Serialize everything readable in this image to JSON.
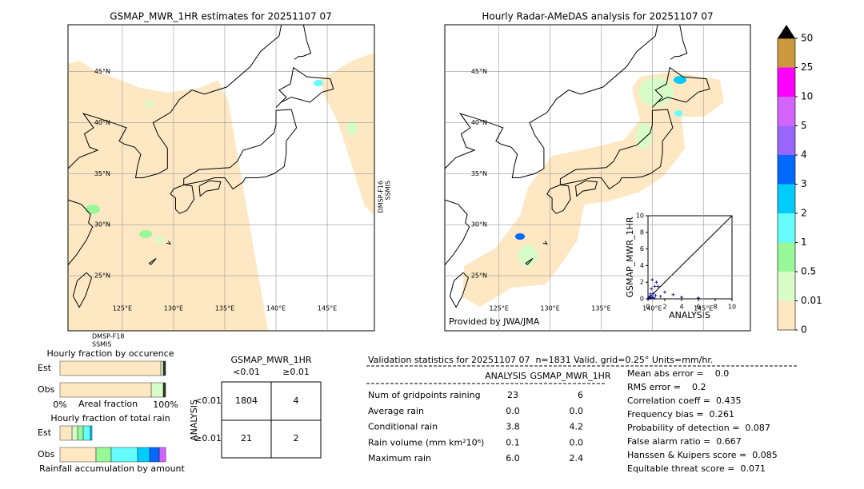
{
  "chart_data": [
    {
      "type": "map",
      "title": "GSMAP_MWR_1HR estimates for 20251107 07",
      "xlim": [
        119.7,
        149.6
      ],
      "ylim": [
        19.6,
        49.6
      ],
      "xticks": [
        {
          "value": 125,
          "label": "125°E"
        },
        {
          "value": 130,
          "label": "130°E"
        },
        {
          "value": 135,
          "label": "135°E"
        },
        {
          "value": 140,
          "label": "140°E"
        },
        {
          "value": 145,
          "label": "145°E"
        }
      ],
      "yticks": [
        {
          "value": 25,
          "label": "25°N"
        },
        {
          "value": 30,
          "label": "30°N"
        },
        {
          "value": 35,
          "label": "35°N"
        },
        {
          "value": 40,
          "label": "40°N"
        },
        {
          "value": 45,
          "label": "45°N"
        }
      ],
      "swath_labels": [
        [
          "DMSP-F16",
          "SSMIS"
        ],
        [
          "DMSP-F18",
          "SSMIS"
        ]
      ]
    },
    {
      "type": "map",
      "title": "Hourly Radar-AMeDAS analysis for 20251107 07",
      "xlim": [
        119.7,
        149.6
      ],
      "ylim": [
        19.6,
        49.6
      ],
      "xticks": [
        {
          "value": 125,
          "label": "125°E"
        },
        {
          "value": 130,
          "label": "130°E"
        },
        {
          "value": 135,
          "label": "135°E"
        },
        {
          "value": 140,
          "label": "140°E"
        },
        {
          "value": 145,
          "label": "145°E"
        }
      ],
      "yticks": [
        {
          "value": 25,
          "label": "25°N"
        },
        {
          "value": 30,
          "label": "30°N"
        },
        {
          "value": 35,
          "label": "35°N"
        },
        {
          "value": 40,
          "label": "40°N"
        },
        {
          "value": 45,
          "label": "45°N"
        }
      ],
      "credit": "Provided by JWA/JMA"
    },
    {
      "type": "scatter",
      "xlabel": "ANALYSIS",
      "ylabel": "GSMAP_MWR_1HR",
      "xlim": [
        0,
        10
      ],
      "ylim": [
        0,
        10
      ],
      "xticks": [
        0,
        2,
        4,
        6,
        8,
        10
      ],
      "yticks": [
        0,
        2,
        4,
        6,
        8,
        10
      ],
      "color": "#00008b",
      "x": [
        0.1,
        0.2,
        0.3,
        0.5,
        0.4,
        0.6,
        0.8,
        1.0,
        1.2,
        0.5,
        0.9,
        1.5,
        2.0,
        3.0,
        4.0,
        6.0,
        0.3,
        0.7
      ],
      "y": [
        0.1,
        0.3,
        0.1,
        2.3,
        1.2,
        0.6,
        1.5,
        2.0,
        1.5,
        0.2,
        0.4,
        0.3,
        0.8,
        0.5,
        0.2,
        0.1,
        0.6,
        0.1
      ]
    },
    {
      "type": "colorbar",
      "bounds": [
        0,
        0.01,
        0.5,
        1,
        2,
        3,
        4,
        5,
        10,
        25,
        50
      ],
      "colors": [
        "#fee8c4",
        "#d8fcc8",
        "#98f898",
        "#66fcfc",
        "#00ccfc",
        "#0068fc",
        "#9966fc",
        "#d264fc",
        "#fc00fc",
        "#cc9a3c"
      ]
    },
    {
      "type": "stacked_bar",
      "title": "Hourly fraction by occurence",
      "xlabel": "Areal fraction",
      "categories": [
        "Est",
        "Obs"
      ],
      "xlim": [
        0,
        100
      ],
      "xticks": [
        {
          "value": 0,
          "label": "0%"
        },
        {
          "value": 100,
          "label": "100%"
        }
      ],
      "series": [
        {
          "color": "#fee8c4",
          "values": [
            95.5,
            86.4
          ]
        },
        {
          "color": "#d8fcc8",
          "values": [
            2.3,
            11.4
          ]
        },
        {
          "color": "#333333",
          "values": [
            2.2,
            2.2
          ]
        }
      ]
    },
    {
      "type": "stacked_bar",
      "title": "Hourly fraction of total rain",
      "xlabel": "Rainfall accumulation by amount",
      "categories": [
        "Est",
        "Obs"
      ],
      "xlim": [
        0,
        100
      ],
      "series": [
        {
          "color": "#fee8c4",
          "values": [
            11.4,
            34.1
          ]
        },
        {
          "color": "#d8fcc8",
          "values": [
            5.3,
            0
          ]
        },
        {
          "color": "#98f898",
          "values": [
            5.3,
            14.4
          ]
        },
        {
          "color": "#66fcfc",
          "values": [
            6.8,
            25
          ]
        },
        {
          "color": "#00ccfc",
          "values": [
            1.5,
            11.4
          ]
        },
        {
          "color": "#0068fc",
          "values": [
            0,
            9.1
          ]
        },
        {
          "color": "#d264fc",
          "values": [
            0,
            6.1
          ]
        }
      ]
    }
  ],
  "contingency": {
    "title": "GSMAP_MWR_1HR",
    "columns": [
      "<0.01",
      "≥0.01"
    ],
    "row_title": "ANALYSIS",
    "rows": [
      "<0.01",
      "≥0.01"
    ],
    "cells": [
      [
        "1804",
        "4"
      ],
      [
        "21",
        "2"
      ]
    ]
  },
  "validation": {
    "title": "Validation statistics for 20251107 07  n=1831 Valid. grid=0.25° Units=mm/hr.",
    "columns": [
      "ANALYSIS",
      "GSMAP_MWR_1HR"
    ],
    "rows": [
      [
        "Num of gridpoints raining",
        "23",
        "6"
      ],
      [
        "Average rain",
        "0.0",
        "0.0"
      ],
      [
        "Conditional rain",
        "3.8",
        "4.2"
      ],
      [
        "Rain volume (mm km²10⁶)",
        "0.1",
        "0.0"
      ],
      [
        "Maximum rain",
        "6.0",
        "2.4"
      ]
    ],
    "scores": [
      "Mean abs error =    0.0",
      "RMS error =    0.2",
      "Correlation coeff =  0.435",
      "Frequency bias =  0.261",
      "Probability of detection =  0.087",
      "False alarm ratio =  0.667",
      "Hanssen & Kuipers score =  0.085",
      "Equitable threat score =  0.071"
    ]
  }
}
